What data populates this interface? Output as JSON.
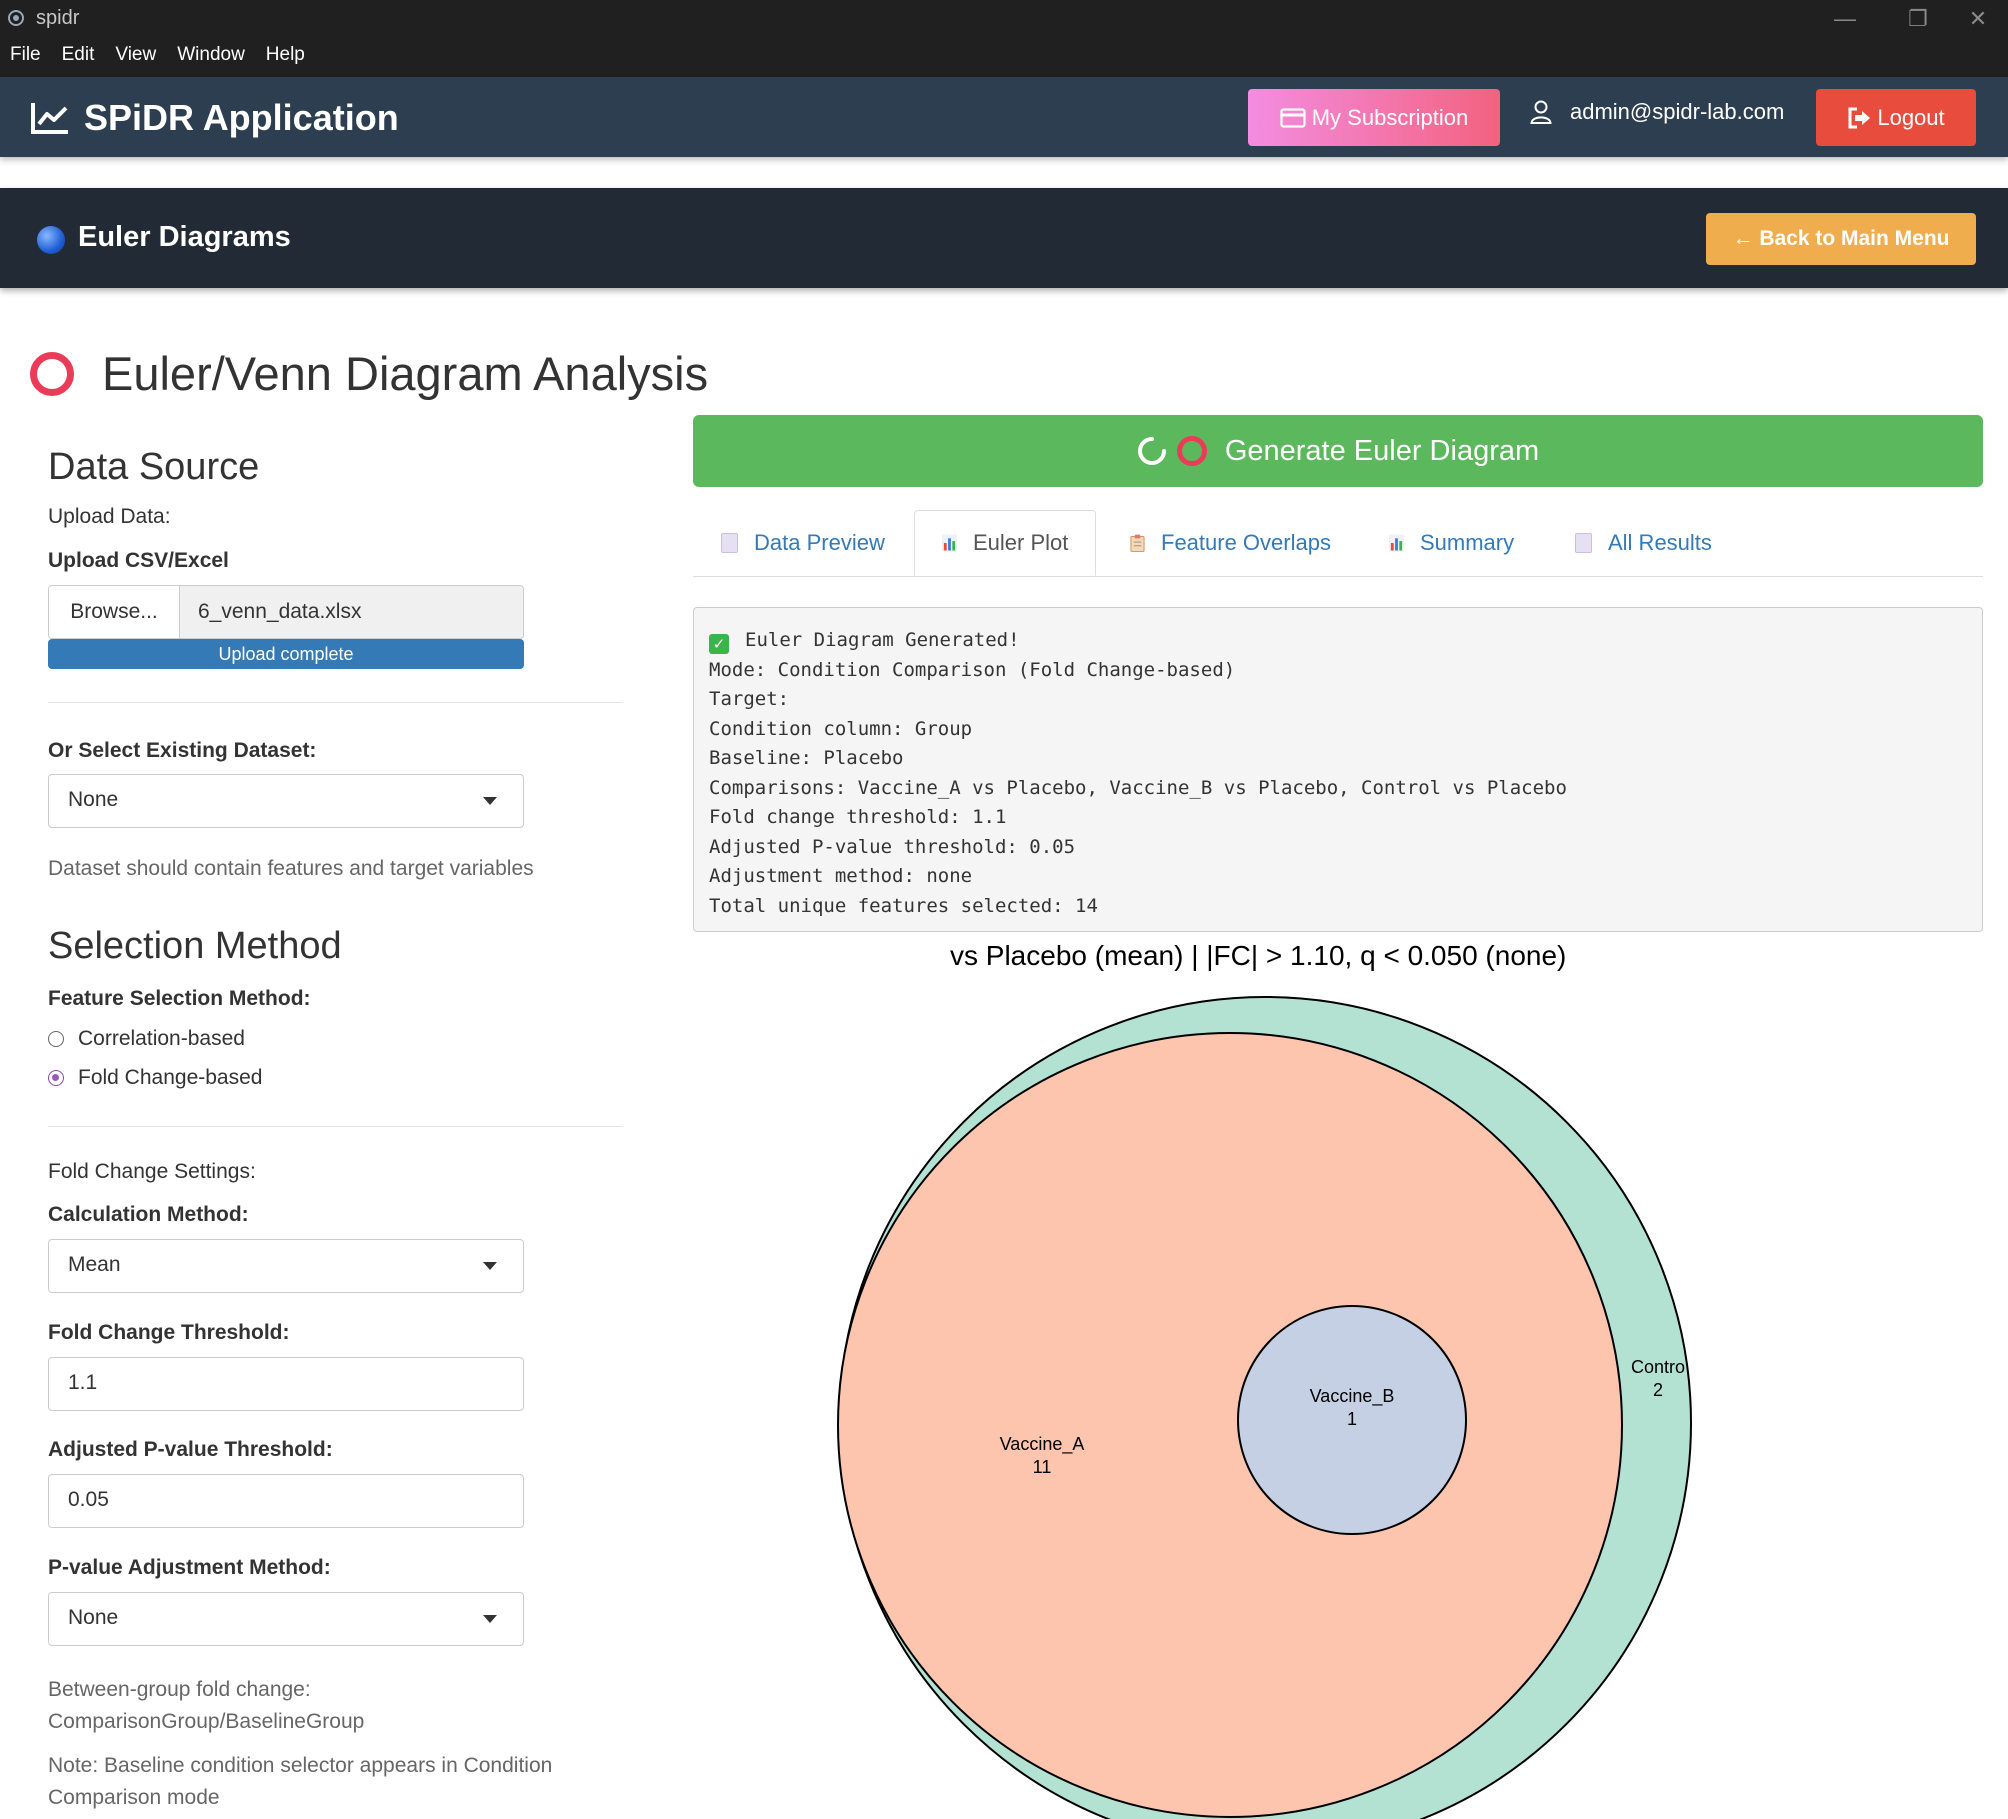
{
  "window": {
    "app_name": "spidr",
    "menu": [
      "File",
      "Edit",
      "View",
      "Window",
      "Help"
    ]
  },
  "navbar": {
    "brand": "SPiDR Application",
    "subscription_label": "My Subscription",
    "user_email": "admin@spidr-lab.com",
    "logout_label": "Logout"
  },
  "subheader": {
    "title": "Euler Diagrams",
    "back_label": "← Back to Main Menu"
  },
  "page": {
    "title": "Euler/Venn Diagram Analysis"
  },
  "data_source": {
    "heading": "Data Source",
    "upload_label": "Upload Data:",
    "upload_field_label": "Upload CSV/Excel",
    "browse_label": "Browse...",
    "file_name": "6_venn_data.xlsx",
    "upload_status": "Upload complete",
    "upload_progress": 1.0,
    "existing_label": "Or Select Existing Dataset:",
    "existing_value": "None",
    "help_text": "Dataset should contain features and target variables"
  },
  "selection": {
    "heading": "Selection Method",
    "method_label": "Feature Selection Method:",
    "options": [
      "Correlation-based",
      "Fold Change-based"
    ],
    "selected": "Fold Change-based",
    "fc_settings_label": "Fold Change Settings:",
    "calc_label": "Calculation Method:",
    "calc_value": "Mean",
    "fc_threshold_label": "Fold Change Threshold:",
    "fc_threshold_value": "1.1",
    "pval_label": "Adjusted P-value Threshold:",
    "pval_value": "0.05",
    "adj_label": "P-value Adjustment Method:",
    "adj_value": "None",
    "note1_line1": "Between-group fold change:",
    "note1_line2": "ComparisonGroup/BaselineGroup",
    "note2_line1": "Note: Baseline condition selector appears in Condition",
    "note2_line2": "Comparison mode"
  },
  "main": {
    "generate_label": "Generate Euler Diagram",
    "tabs": [
      "Data Preview",
      "Euler Plot",
      "Feature Overlaps",
      "Summary",
      "All Results"
    ],
    "active_tab": "Euler Plot",
    "output_lines": [
      "Euler Diagram Generated!",
      "Mode: Condition Comparison (Fold Change-based)",
      "Target:",
      "Condition column: Group",
      "Baseline: Placebo",
      "Comparisons: Vaccine_A vs Placebo, Vaccine_B vs Placebo, Control vs Placebo",
      "Fold change threshold: 1.1",
      "Adjusted P-value threshold: 0.05",
      "Adjustment method: none",
      "Total unique features selected: 14"
    ]
  },
  "chart_data": {
    "type": "euler",
    "title": "vs Placebo (mean) | |FC| > 1.10, q < 0.050 (none)",
    "sets": [
      {
        "name": "Control",
        "count": 2,
        "label": "Contro",
        "color": "#b3e2d3"
      },
      {
        "name": "Vaccine_A",
        "count": 11,
        "color": "#fdc4ae"
      },
      {
        "name": "Vaccine_B",
        "count": 1,
        "color": "#c5d0e4"
      }
    ]
  }
}
